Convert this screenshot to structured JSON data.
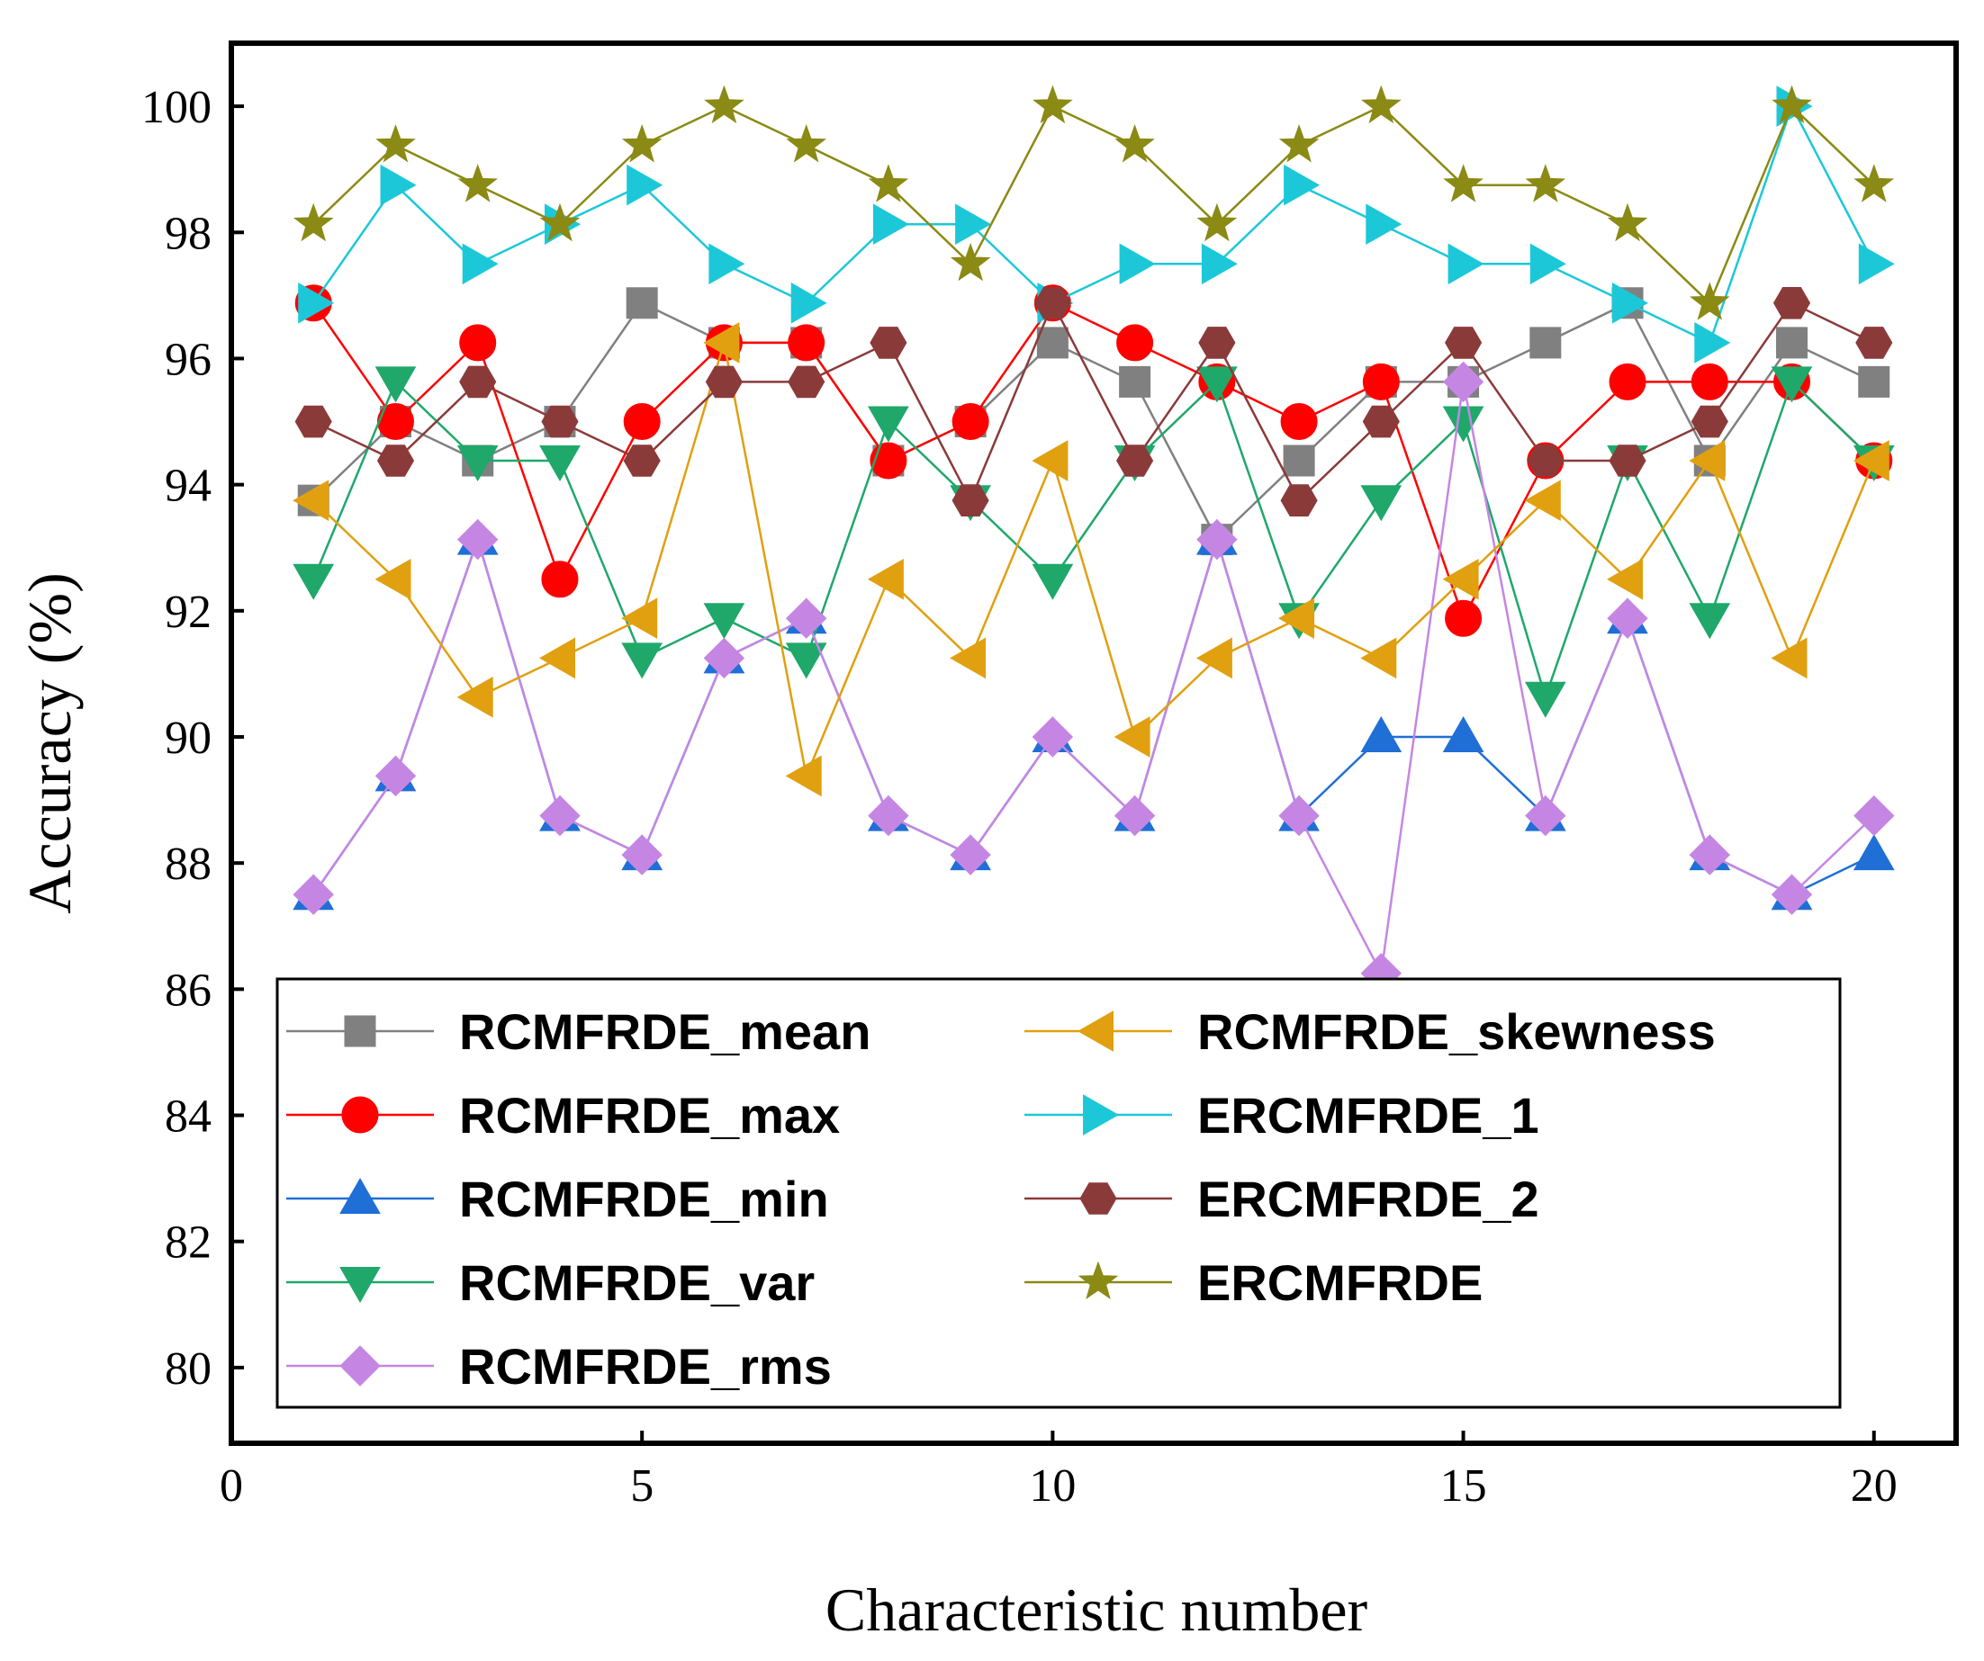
{
  "chart_data": {
    "type": "line",
    "title": "",
    "xlabel": "Characteristic number",
    "ylabel": "Accuracy (%)",
    "xlim": [
      0,
      21
    ],
    "ylim": [
      78.8,
      101
    ],
    "xticks": [
      0,
      5,
      10,
      15,
      20
    ],
    "yticks": [
      80,
      82,
      84,
      86,
      88,
      90,
      92,
      94,
      96,
      98,
      100
    ],
    "grid": false,
    "legend_position": "bottom",
    "x": [
      1,
      2,
      3,
      4,
      5,
      6,
      7,
      8,
      9,
      10,
      11,
      12,
      13,
      14,
      15,
      16,
      17,
      18,
      19,
      20
    ],
    "series": [
      {
        "name": "RCMFRDE_mean",
        "color": "#808080",
        "marker": "square",
        "values": [
          93.75,
          95.0,
          94.38,
          95.0,
          96.88,
          96.25,
          96.25,
          94.38,
          95.0,
          96.25,
          95.63,
          93.13,
          94.38,
          95.63,
          95.63,
          96.25,
          96.88,
          94.38,
          96.25,
          95.63
        ]
      },
      {
        "name": "RCMFRDE_max",
        "color": "#ff0000",
        "marker": "circle",
        "values": [
          96.88,
          95.0,
          96.25,
          92.5,
          95.0,
          96.25,
          96.25,
          94.38,
          95.0,
          96.88,
          96.25,
          95.63,
          95.0,
          95.63,
          91.88,
          94.38,
          95.63,
          95.63,
          95.63,
          94.38
        ]
      },
      {
        "name": "RCMFRDE_min",
        "color": "#1f6fd6",
        "marker": "triangle-up",
        "values": [
          87.5,
          89.38,
          93.13,
          88.75,
          88.13,
          91.25,
          91.88,
          88.75,
          88.13,
          90.0,
          88.75,
          93.13,
          88.75,
          90.0,
          90.0,
          88.75,
          91.88,
          88.13,
          87.5,
          88.13
        ]
      },
      {
        "name": "RCMFRDE_var",
        "color": "#1fa86a",
        "marker": "triangle-down",
        "values": [
          92.5,
          95.63,
          94.38,
          94.38,
          91.25,
          91.88,
          91.25,
          95.0,
          93.75,
          92.5,
          94.38,
          95.63,
          91.88,
          93.75,
          95.0,
          90.63,
          94.38,
          91.88,
          95.63,
          94.38
        ]
      },
      {
        "name": "RCMFRDE_rms",
        "color": "#c586e3",
        "marker": "diamond",
        "values": [
          87.5,
          89.38,
          93.13,
          88.75,
          88.13,
          91.25,
          91.88,
          88.75,
          88.13,
          90.0,
          88.75,
          93.13,
          88.75,
          86.25,
          95.63,
          88.75,
          91.88,
          88.13,
          87.5,
          88.75
        ]
      },
      {
        "name": "RCMFRDE_skewness",
        "color": "#e0a010",
        "marker": "triangle-left",
        "values": [
          93.75,
          92.5,
          90.63,
          91.25,
          91.88,
          96.25,
          89.38,
          92.5,
          91.25,
          94.38,
          90.0,
          91.25,
          91.88,
          91.25,
          92.5,
          93.75,
          92.5,
          94.38,
          91.25,
          94.38
        ]
      },
      {
        "name": "ERCMFRDE_1",
        "color": "#1cc8d8",
        "marker": "triangle-right",
        "values": [
          96.88,
          98.75,
          97.5,
          98.13,
          98.75,
          97.5,
          96.88,
          98.13,
          98.13,
          96.88,
          97.5,
          97.5,
          98.75,
          98.13,
          97.5,
          97.5,
          96.88,
          96.25,
          100.0,
          97.5
        ]
      },
      {
        "name": "ERCMFRDE_2",
        "color": "#8b3a3a",
        "marker": "hexagon",
        "values": [
          95.0,
          94.38,
          95.63,
          95.0,
          94.38,
          95.63,
          95.63,
          96.25,
          93.75,
          96.88,
          94.38,
          96.25,
          93.75,
          95.0,
          96.25,
          94.38,
          94.38,
          95.0,
          96.88,
          96.25
        ]
      },
      {
        "name": "ERCMFRDE",
        "color": "#8a8a14",
        "marker": "star",
        "values": [
          98.13,
          99.38,
          98.75,
          98.13,
          99.38,
          100.0,
          99.38,
          98.75,
          97.5,
          100.0,
          99.38,
          98.13,
          99.38,
          100.0,
          98.75,
          98.75,
          98.13,
          96.88,
          100.0,
          98.75
        ]
      }
    ]
  }
}
